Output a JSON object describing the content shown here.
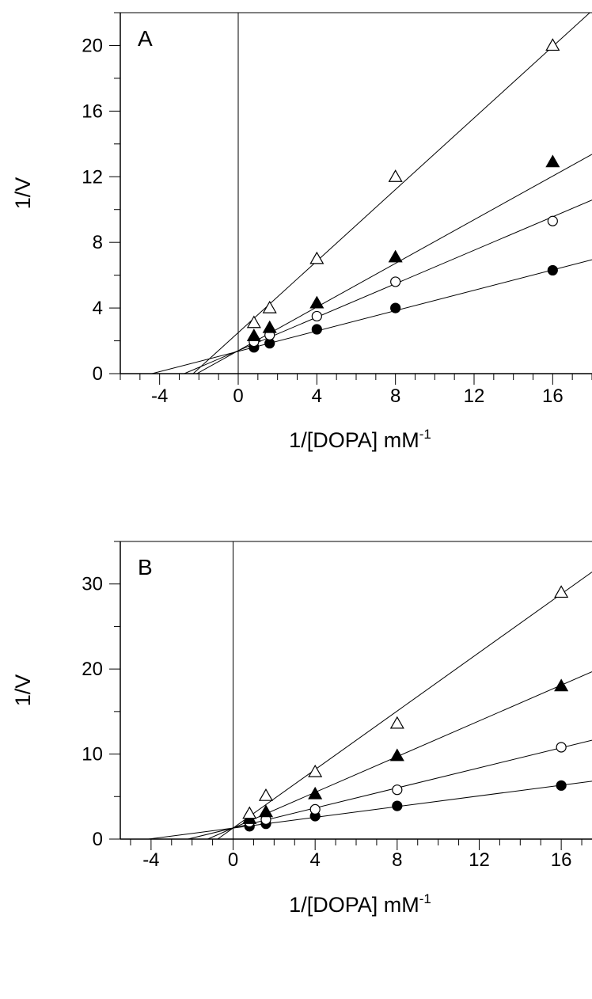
{
  "chart_data": [
    {
      "type": "scatter",
      "panel_label": "A",
      "xlabel": "1/[DOPA] mM",
      "xlabel_sup": "-1",
      "ylabel": "1/V",
      "xlim": [
        -6,
        18
      ],
      "ylim": [
        0,
        22
      ],
      "x_ticks": [
        -4,
        0,
        4,
        8,
        12,
        16
      ],
      "y_ticks": [
        0,
        4,
        8,
        12,
        16,
        20
      ],
      "grid": false,
      "series": [
        {
          "marker": "filled-circle",
          "x": [
            0.8,
            1.6,
            4,
            8,
            16
          ],
          "y": [
            1.6,
            1.85,
            2.7,
            4.0,
            6.3
          ],
          "fit": {
            "slope": 0.31,
            "intercept": 1.36
          }
        },
        {
          "marker": "open-circle",
          "x": [
            0.8,
            1.6,
            4,
            8,
            16
          ],
          "y": [
            1.95,
            2.35,
            3.5,
            5.6,
            9.3
          ],
          "fit": {
            "slope": 0.51,
            "intercept": 1.4
          }
        },
        {
          "marker": "filled-triangle",
          "x": [
            0.8,
            1.6,
            4,
            8,
            16
          ],
          "y": [
            2.3,
            2.8,
            4.3,
            7.1,
            12.9
          ],
          "fit": {
            "slope": 0.665,
            "intercept": 1.4
          }
        },
        {
          "marker": "open-triangle",
          "x": [
            0.8,
            1.6,
            4,
            8,
            16
          ],
          "y": [
            3.1,
            4.0,
            7.0,
            12.0,
            20.0
          ],
          "fit": {
            "slope": 1.09,
            "intercept": 2.5
          }
        }
      ]
    },
    {
      "type": "scatter",
      "panel_label": "B",
      "xlabel": "1/[DOPA] mM",
      "xlabel_sup": "-1",
      "ylabel": "1/V",
      "xlim": [
        -5.5,
        17.5
      ],
      "ylim": [
        0,
        35
      ],
      "x_ticks": [
        -4,
        0,
        4,
        8,
        12,
        16
      ],
      "y_ticks": [
        0,
        10,
        20,
        30
      ],
      "grid": false,
      "series": [
        {
          "marker": "filled-circle",
          "x": [
            0.8,
            1.6,
            4,
            8,
            16
          ],
          "y": [
            1.5,
            1.8,
            2.7,
            3.9,
            6.3
          ],
          "fit": {
            "slope": 0.315,
            "intercept": 1.3
          }
        },
        {
          "marker": "open-circle",
          "x": [
            0.8,
            1.6,
            4,
            8,
            16
          ],
          "y": [
            2.0,
            2.3,
            3.5,
            5.8,
            10.8
          ],
          "fit": {
            "slope": 0.59,
            "intercept": 1.3
          }
        },
        {
          "marker": "filled-triangle",
          "x": [
            0.8,
            1.6,
            4,
            8,
            16
          ],
          "y": [
            2.4,
            3.2,
            5.3,
            9.8,
            18.0
          ],
          "fit": {
            "slope": 1.05,
            "intercept": 1.3
          }
        },
        {
          "marker": "open-triangle",
          "x": [
            0.8,
            1.6,
            4,
            8,
            16
          ],
          "y": [
            3.0,
            5.1,
            7.9,
            13.6,
            29.0
          ],
          "fit": {
            "slope": 1.72,
            "intercept": 1.3
          }
        }
      ]
    }
  ]
}
